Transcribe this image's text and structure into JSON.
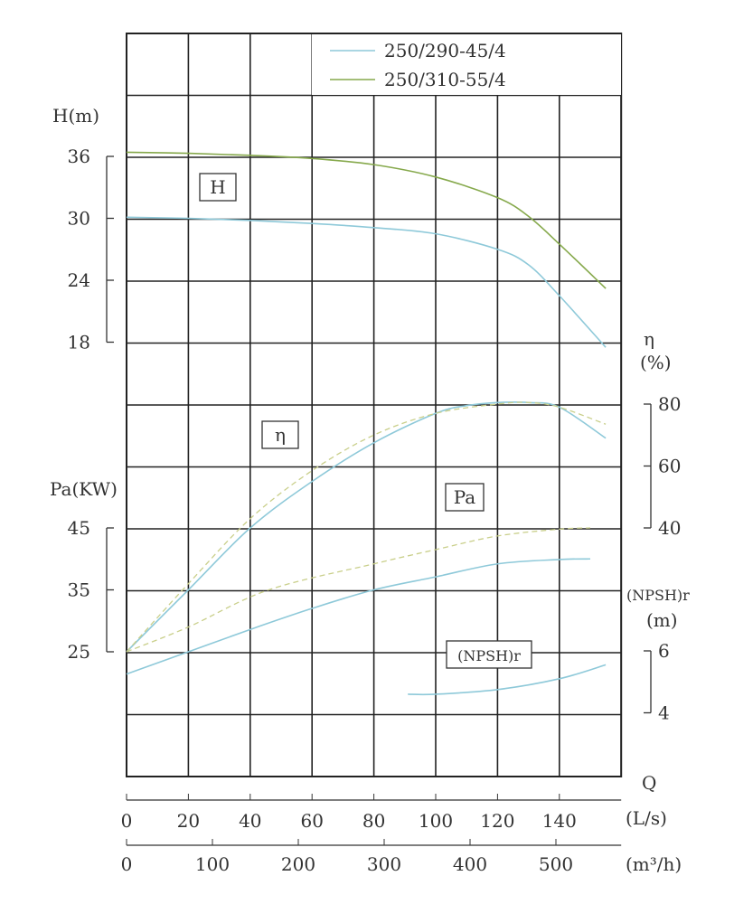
{
  "chart_data": {
    "type": "line",
    "title": "",
    "legend": {
      "placement": "top-right",
      "entries": [
        "250/290-45/4",
        "250/310-55/4"
      ]
    },
    "colors": {
      "250/290-45/4": "#8ec9d9",
      "250/310-55/4": "#86a94c"
    },
    "grid": true,
    "x": {
      "label_top": "Q",
      "axes": [
        {
          "unit": "(L/s)",
          "ticks": [
            0,
            20,
            40,
            60,
            80,
            100,
            120,
            140
          ],
          "range": [
            0,
            160
          ]
        },
        {
          "unit": "(m³/h)",
          "ticks": [
            0,
            100,
            200,
            300,
            400,
            500
          ]
        }
      ]
    },
    "y_axes": {
      "H": {
        "label": "H(m)",
        "ticks": [
          18,
          24,
          30,
          36
        ],
        "box_label": "H"
      },
      "eta": {
        "label": "η",
        "unit": "(%)",
        "ticks": [
          40,
          60,
          80
        ],
        "box_label": "η"
      },
      "Pa": {
        "label": "Pa(KW)",
        "ticks": [
          25,
          35,
          45
        ],
        "box_label": "Pa"
      },
      "NPSH": {
        "label": "(NPSH)r",
        "unit": "(m)",
        "ticks": [
          4,
          6
        ],
        "box_label": "(NPSH)r"
      }
    },
    "series": [
      {
        "name": "250/290-45/4",
        "quantity": "H",
        "style": "solid",
        "points": [
          [
            0,
            30.1
          ],
          [
            20,
            30
          ],
          [
            40,
            29.8
          ],
          [
            60,
            29.5
          ],
          [
            80,
            29.1
          ],
          [
            100,
            28.5
          ],
          [
            120,
            27
          ],
          [
            130,
            25.5
          ],
          [
            140,
            22.5
          ],
          [
            155,
            17.5
          ]
        ]
      },
      {
        "name": "250/310-55/4",
        "quantity": "H",
        "style": "solid",
        "points": [
          [
            0,
            36.4
          ],
          [
            20,
            36.3
          ],
          [
            40,
            36.1
          ],
          [
            60,
            35.8
          ],
          [
            80,
            35.2
          ],
          [
            100,
            34
          ],
          [
            120,
            32
          ],
          [
            130,
            30.2
          ],
          [
            140,
            27.5
          ],
          [
            155,
            23.2
          ]
        ]
      },
      {
        "name": "250/290-45/4",
        "quantity": "eta",
        "style": "solid",
        "points": [
          [
            0,
            0
          ],
          [
            20,
            20
          ],
          [
            40,
            40
          ],
          [
            60,
            55
          ],
          [
            80,
            67.5
          ],
          [
            100,
            77
          ],
          [
            110,
            79.5
          ],
          [
            120,
            80.5
          ],
          [
            130,
            80.5
          ],
          [
            140,
            79
          ],
          [
            155,
            69
          ]
        ]
      },
      {
        "name": "250/310-55/4",
        "quantity": "eta",
        "style": "dashed",
        "points": [
          [
            0,
            0
          ],
          [
            20,
            22
          ],
          [
            40,
            43
          ],
          [
            60,
            58.5
          ],
          [
            80,
            70
          ],
          [
            100,
            77
          ],
          [
            120,
            80
          ],
          [
            130,
            80.5
          ],
          [
            140,
            79
          ],
          [
            155,
            73.5
          ]
        ]
      },
      {
        "name": "250/290-45/4",
        "quantity": "Pa",
        "style": "solid",
        "points": [
          [
            0,
            21.4
          ],
          [
            20,
            25
          ],
          [
            40,
            28.6
          ],
          [
            60,
            32
          ],
          [
            80,
            35
          ],
          [
            100,
            37.1
          ],
          [
            120,
            39.2
          ],
          [
            140,
            39.9
          ],
          [
            150,
            40
          ]
        ]
      },
      {
        "name": "250/310-55/4",
        "quantity": "Pa",
        "style": "dashed",
        "points": [
          [
            0,
            25
          ],
          [
            20,
            29
          ],
          [
            46,
            35
          ],
          [
            80,
            39.2
          ],
          [
            100,
            41.5
          ],
          [
            120,
            43.7
          ],
          [
            140,
            44.8
          ],
          [
            150,
            45
          ]
        ]
      },
      {
        "name": "250/290-45/4",
        "quantity": "NPSH",
        "style": "solid",
        "points": [
          [
            91,
            4.6
          ],
          [
            100,
            4.6
          ],
          [
            120,
            4.75
          ],
          [
            140,
            5.1
          ],
          [
            155,
            5.55
          ]
        ]
      }
    ]
  }
}
